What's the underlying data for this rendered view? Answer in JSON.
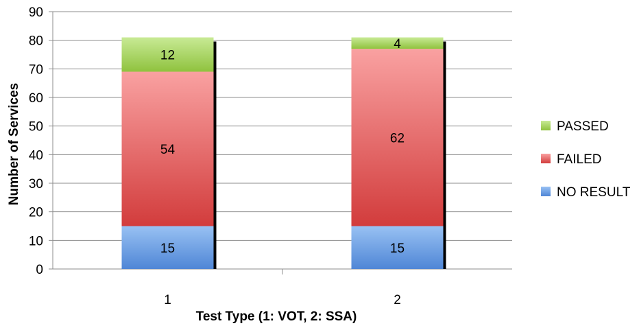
{
  "chart_data": {
    "type": "bar",
    "stacked": true,
    "title": "",
    "xlabel": "Test Type (1: VOT, 2: SSA)",
    "ylabel": "Number of Services",
    "categories": [
      "1",
      "2"
    ],
    "ylim": [
      0,
      90
    ],
    "yticks": [
      0,
      10,
      20,
      30,
      40,
      50,
      60,
      70,
      80,
      90
    ],
    "grid": true,
    "legend_position": "right",
    "series": [
      {
        "name": "NO RESULT",
        "values": [
          15,
          15
        ],
        "color": "#4f86d6",
        "color_light": "#98c1f3"
      },
      {
        "name": "FAILED",
        "values": [
          54,
          62
        ],
        "color": "#d23c3c",
        "color_light": "#f9a1a1"
      },
      {
        "name": "PASSED",
        "values": [
          12,
          4
        ],
        "color": "#8fc23e",
        "color_light": "#c8ea95"
      }
    ],
    "legend_order": [
      "PASSED",
      "FAILED",
      "NO RESULT"
    ]
  }
}
